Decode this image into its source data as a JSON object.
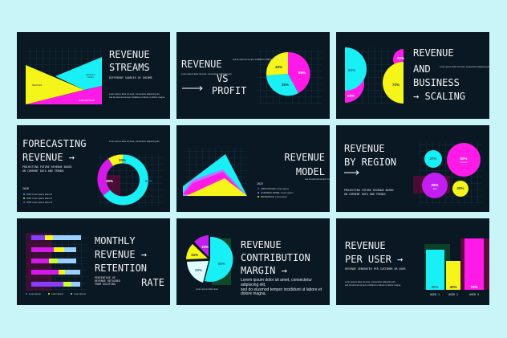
{
  "colors": {
    "background": "#c9f5f8",
    "slide": "#0a1824",
    "cyan": "#19f0f5",
    "magenta": "#ff1ae8",
    "yellow": "#f5f51a",
    "purple": "#8a3cff",
    "grid": "#1d4a52"
  },
  "lorem": "Lorem ipsum dolor sit amet, consectetur adipiscing elit,",
  "lorem2": "sed do eiusmod tempor incididunt ut labore et dolore magna.",
  "slides": [
    {
      "title1": "REVENUE",
      "title2": "STREAMS",
      "subtitle": "DIFFERENT SOURCES OF INCOME",
      "labels": [
        "SERVICES",
        "PRODUCT",
        "SALES",
        "SUBSCRIPTIONS"
      ]
    },
    {
      "title1": "REVENUE",
      "title2": "VS",
      "title3": "PROFIT",
      "pcts": [
        "45%",
        "55%",
        "35%"
      ]
    },
    {
      "title1": "REVENUE",
      "title2": "AND",
      "title3": "BUSINESS",
      "title4": "→ SCALING",
      "pcts": [
        "50%",
        "60%",
        "20%",
        "70%"
      ]
    },
    {
      "title1": "FORECASTING",
      "title2": "REVENUE →",
      "subtitle1": "PROJECTING FUTURE REVENUE BASED",
      "subtitle2": "ON CURRENT DATA AND TRENDS",
      "year": "2026",
      "legend": [
        "2026: Lorem ipsum dolor sit",
        "2026: Lorem ipsum dolor sit",
        "2026: Lorem ipsum dolor sit"
      ],
      "pcts": [
        "20%",
        "30%",
        "50%"
      ]
    },
    {
      "title1": "REVENUE",
      "title2": "MODEL",
      "year": "2025",
      "legend": [
        "APPLICATIONS: Lorem ipsum",
        "LICENSING MODEL: Lorem ipsum",
        "BROKERAGE: Lorem ipsum"
      ]
    },
    {
      "title1": "REVENUE",
      "title2": "BY REGION",
      "subtitle1": "PROJECTING FUTURE REVENUE BASED",
      "subtitle2": "ON CURRENT DATA AND TRENDS",
      "bubbles": [
        {
          "pct": "20%"
        },
        {
          "pct": "50%",
          "label": "Australia"
        },
        {
          "pct": "25%",
          "label": "Asia"
        },
        {
          "pct": "20%"
        }
      ]
    },
    {
      "title1": "MONTHLY",
      "title2": "REVENUE →",
      "title3": "RETENTION",
      "title4": "RATE",
      "subtitle": [
        "PERCENTAGE OF",
        "REVENUE RETAINED",
        "FROM EXISTING"
      ],
      "legend": [
        "Lorem ipsum",
        "Lorem ipsum",
        "Lorem ipsum"
      ]
    },
    {
      "title1": "REVENUE",
      "title2": "CONTRIBUTION",
      "title3": "MARGIN →",
      "pcts": [
        "55%",
        "20%",
        "15%",
        "10%"
      ],
      "caption": "Lorem ipsum dolor amet"
    },
    {
      "title1": "REVENUE",
      "title2": "PER USER →",
      "subtitle": "REVENUE GENERATED PER CUSTOMER OR USER",
      "bars": [
        {
          "label": "USER 1",
          "pct": "30%"
        },
        {
          "label": "USER 2",
          "pct": "40%"
        },
        {
          "label": "USER 3",
          "pct": "70%"
        }
      ]
    }
  ]
}
